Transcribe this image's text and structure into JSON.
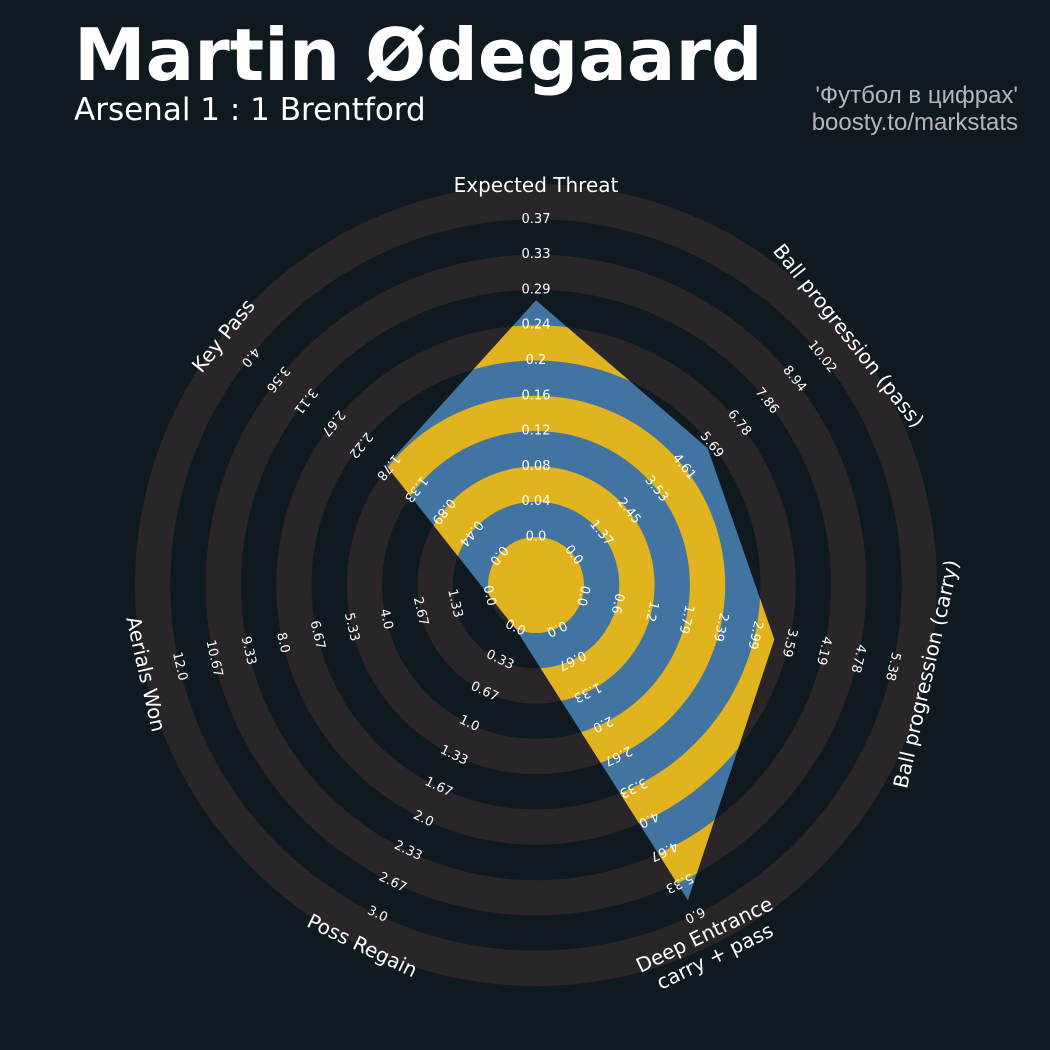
{
  "header": {
    "title": "Martin Ødegaard",
    "subtitle": "Arsenal 1 : 1 Brentford",
    "credit_line1": "'Футбол в цифрах'",
    "credit_line2": "boosty.to/markstats"
  },
  "colors": {
    "background": "#0f1920",
    "ring_band": "#2a2529",
    "polygon_blue": "#4174a0",
    "polygon_gold": "#e1b31e",
    "text": "#ffffff",
    "credit_text": "#b4b7ba"
  },
  "chart_data": {
    "type": "radar",
    "title": "Martin Ødegaard",
    "subtitle": "Arsenal 1 : 1 Brentford",
    "params": [
      {
        "label_lines": [
          "Expected Threat"
        ],
        "min": 0.0,
        "max": 0.37,
        "value": 0.29,
        "ticks": [
          "0.0",
          "0.04",
          "0.08",
          "0.12",
          "0.16",
          "0.2",
          "0.24",
          "0.29",
          "0.33",
          "0.37"
        ]
      },
      {
        "label_lines": [
          "Ball progression (pass)"
        ],
        "min": 0.0,
        "max": 10.02,
        "value": 5.69,
        "ticks": [
          "0.0",
          "1.37",
          "2.45",
          "3.53",
          "4.61",
          "5.69",
          "6.78",
          "7.86",
          "8.94",
          "10.02"
        ]
      },
      {
        "label_lines": [
          "Ball progression (carry)"
        ],
        "min": 0.0,
        "max": 5.38,
        "value": 3.5,
        "ticks": [
          "0.0",
          "0.6",
          "1.2",
          "1.79",
          "2.39",
          "2.99",
          "3.59",
          "4.19",
          "4.78",
          "5.38"
        ]
      },
      {
        "label_lines": [
          "Deep Entrance",
          "carry + pass"
        ],
        "min": 0.0,
        "max": 6.0,
        "value": 6.0,
        "ticks": [
          "0.0",
          "0.67",
          "1.33",
          "2.0",
          "2.67",
          "3.33",
          "4.0",
          "4.67",
          "5.33",
          "6.0"
        ]
      },
      {
        "label_lines": [
          "Poss Regain"
        ],
        "min": 0.0,
        "max": 3.0,
        "value": 0.0,
        "ticks": [
          "0.0",
          "0.33",
          "0.67",
          "1.0",
          "1.33",
          "1.67",
          "2.0",
          "2.33",
          "2.67",
          "3.0"
        ]
      },
      {
        "label_lines": [
          "Aerials Won"
        ],
        "min": 0.0,
        "max": 12.0,
        "value": 0.0,
        "ticks": [
          "0.0",
          "1.33",
          "2.67",
          "4.0",
          "5.33",
          "6.67",
          "8.0",
          "9.33",
          "10.67",
          "12.0"
        ]
      },
      {
        "label_lines": [
          "Key Pass"
        ],
        "min": 0.0,
        "max": 4.0,
        "value": 1.9,
        "ticks": [
          "0.0",
          "0.44",
          "0.89",
          "1.33",
          "1.78",
          "2.22",
          "2.67",
          "3.11",
          "3.56",
          "4.0"
        ]
      }
    ]
  }
}
